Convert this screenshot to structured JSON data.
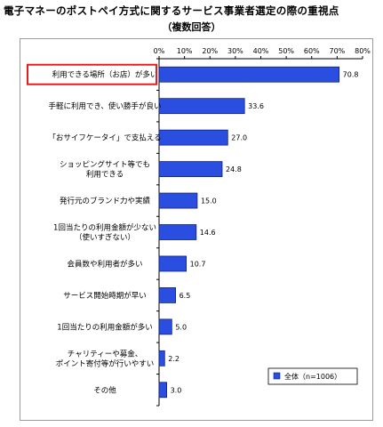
{
  "title": "電子マネーのポストペイ方式に関するサービス事業者選定の際の重視点",
  "subtitle": "（複数回答）",
  "chart_data": {
    "type": "bar",
    "orientation": "horizontal",
    "categories": [
      "利用できる場所（お店）が多い",
      "手軽に利用でき、使い勝手が良い",
      "「おサイフケータイ」で支払える",
      "ショッピングサイト等でも\n利用できる",
      "発行元のブランド力や実績",
      "1回当たりの利用金額が少ない\n（使いすぎない）",
      "会員数や利用者が多い",
      "サービス開始時期が早い",
      "1回当たりの利用金額が多い",
      "チャリティーや募金、\nポイント寄付等が行いやすい",
      "その他"
    ],
    "series": [
      {
        "name": "全体（n=1006）",
        "values": [
          70.8,
          33.6,
          27.0,
          24.8,
          15.0,
          14.6,
          10.7,
          6.5,
          5.0,
          2.2,
          3.0
        ]
      }
    ],
    "value_labels": [
      "70.8",
      "33.6",
      "27.0",
      "24.8",
      "15.0",
      "14.6",
      "10.7",
      "6.5",
      "5.0",
      "2.2",
      "3.0"
    ],
    "xlim": [
      0,
      80
    ],
    "ticks": [
      "0%",
      "10%",
      "20%",
      "30%",
      "40%",
      "50%",
      "60%",
      "70%",
      "80%"
    ],
    "xlabel": "",
    "ylabel": "",
    "grid": false,
    "legend_position": "bottom-right",
    "highlighted_category": "利用できる場所（お店）が多い",
    "colors": {
      "bar": "#2a4fe0",
      "bar_edge": "#10207a",
      "highlight_box": "#e02020"
    }
  }
}
